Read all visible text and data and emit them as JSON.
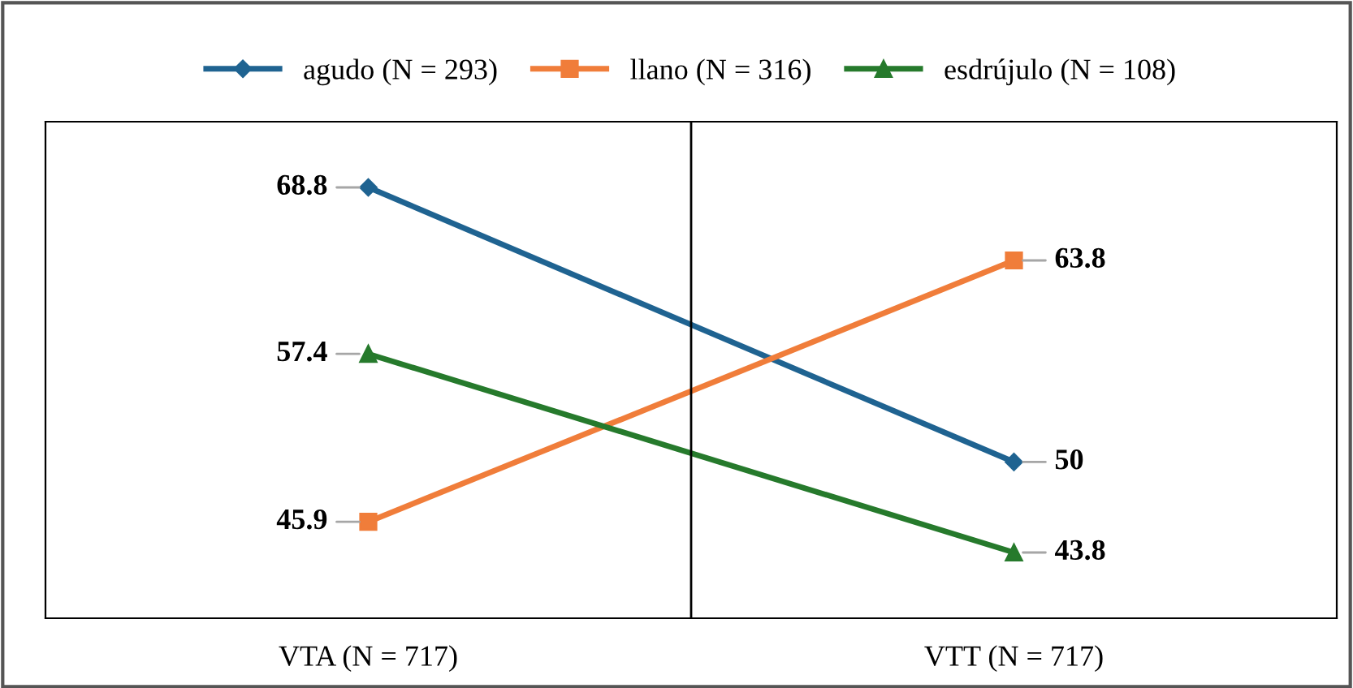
{
  "chart_data": {
    "type": "line",
    "categories": [
      "VTA (N = 717)",
      "VTT (N = 717)"
    ],
    "series": [
      {
        "name": "agudo (N = 293)",
        "color": "#1f6391",
        "marker": "diamond",
        "values": [
          68.8,
          50
        ]
      },
      {
        "name": "llano (N = 316)",
        "color": "#f07d3a",
        "marker": "square",
        "values": [
          45.9,
          63.8
        ]
      },
      {
        "name": "esdrújulo (N = 108)",
        "color": "#267a2c",
        "marker": "triangle",
        "values": [
          57.4,
          43.8
        ]
      }
    ],
    "data_labels": true,
    "legend": "top",
    "grid": "x",
    "line_style": "solid"
  }
}
